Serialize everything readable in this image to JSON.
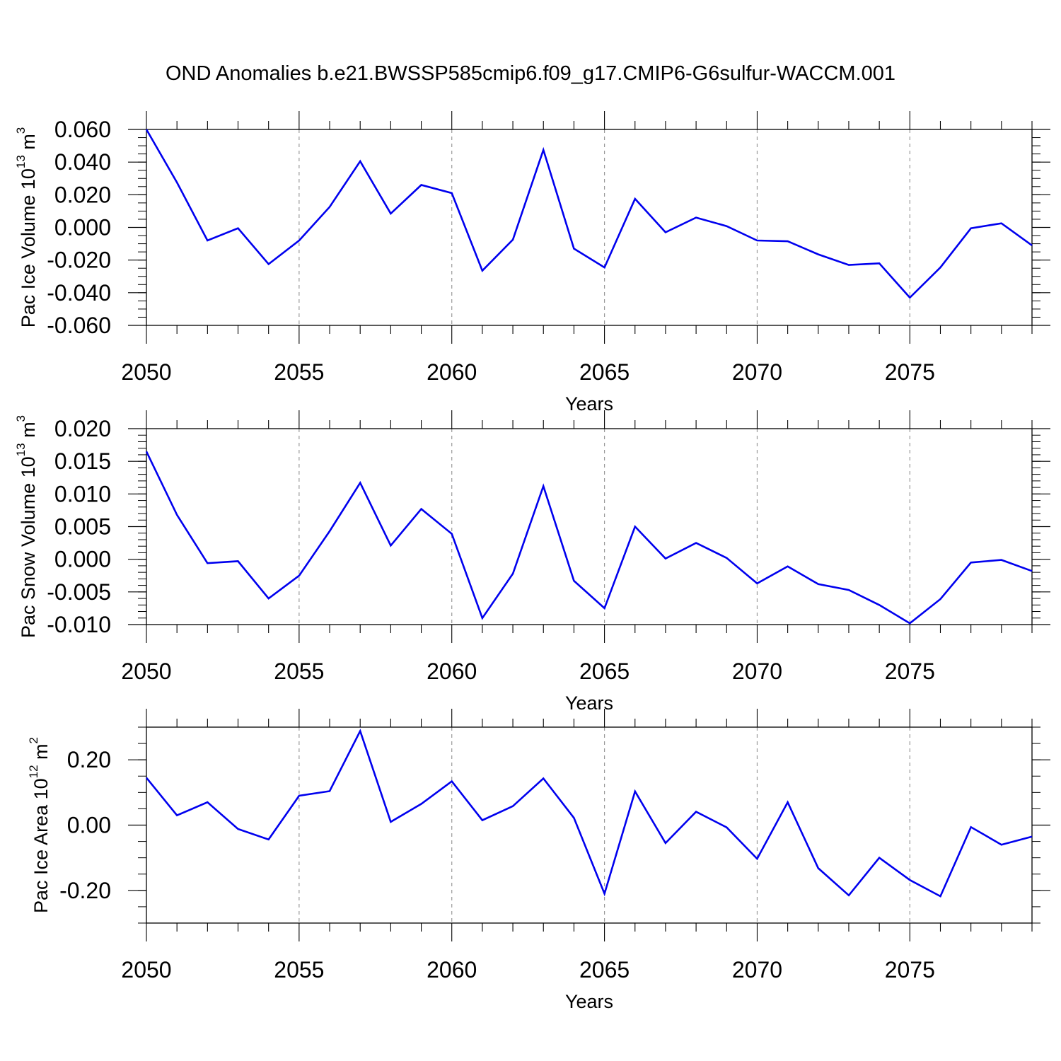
{
  "title": "OND Anomalies b.e21.BWSSP585cmip6.f09_g17.CMIP6-G6sulfur-WACCM.001",
  "chart_data": [
    {
      "type": "line",
      "ylabel_text": "Pac Ice Volume 10",
      "ylabel_exp": "13",
      "ylabel_unit": " m",
      "ylabel_unit_exp": "3",
      "xlabel": "Years",
      "xlim": [
        2050,
        2079
      ],
      "ylim": [
        -0.06,
        0.06
      ],
      "yticks": [
        -0.06,
        -0.04,
        -0.02,
        0.0,
        0.02,
        0.04,
        0.06
      ],
      "ytick_labels": [
        "-0.060",
        "-0.040",
        "-0.020",
        "0.000",
        "0.020",
        "0.040",
        "0.060"
      ],
      "yminor_step": 0.005,
      "xticks": [
        2050,
        2055,
        2060,
        2065,
        2070,
        2075
      ],
      "xtick_labels": [
        "2050",
        "2055",
        "2060",
        "2065",
        "2070",
        "2075"
      ],
      "grid": "vertical dashed at major x ticks",
      "color": "#0000ee",
      "x": [
        2050,
        2051,
        2052,
        2053,
        2054,
        2055,
        2056,
        2057,
        2058,
        2059,
        2060,
        2061,
        2062,
        2063,
        2064,
        2065,
        2066,
        2067,
        2068,
        2069,
        2070,
        2071,
        2072,
        2073,
        2074,
        2075,
        2076,
        2077,
        2078,
        2079
      ],
      "values": [
        0.06,
        0.0275,
        -0.008,
        -0.0005,
        -0.0225,
        -0.008,
        0.0125,
        0.0405,
        0.0085,
        0.026,
        0.021,
        -0.0265,
        -0.0075,
        0.0475,
        -0.013,
        -0.0245,
        0.0175,
        -0.003,
        0.006,
        0.0008,
        -0.008,
        -0.0085,
        -0.0165,
        -0.023,
        -0.022,
        -0.043,
        -0.0245,
        -0.0005,
        0.0025,
        -0.011
      ]
    },
    {
      "type": "line",
      "ylabel_text": "Pac Snow Volume 10",
      "ylabel_exp": "13",
      "ylabel_unit": " m",
      "ylabel_unit_exp": "3",
      "xlabel": "Years",
      "xlim": [
        2050,
        2079
      ],
      "ylim": [
        -0.01,
        0.02
      ],
      "yticks": [
        -0.01,
        -0.005,
        0.0,
        0.005,
        0.01,
        0.015,
        0.02
      ],
      "ytick_labels": [
        "-0.010",
        "-0.005",
        "0.000",
        "0.005",
        "0.010",
        "0.015",
        "0.020"
      ],
      "yminor_step": 0.001,
      "xticks": [
        2050,
        2055,
        2060,
        2065,
        2070,
        2075
      ],
      "xtick_labels": [
        "2050",
        "2055",
        "2060",
        "2065",
        "2070",
        "2075"
      ],
      "grid": "vertical dashed at major x ticks",
      "color": "#0000ee",
      "x": [
        2050,
        2051,
        2052,
        2053,
        2054,
        2055,
        2056,
        2057,
        2058,
        2059,
        2060,
        2061,
        2062,
        2063,
        2064,
        2065,
        2066,
        2067,
        2068,
        2069,
        2070,
        2071,
        2072,
        2073,
        2074,
        2075,
        2076,
        2077,
        2078,
        2079
      ],
      "values": [
        0.0165,
        0.0068,
        -0.0006,
        -0.0003,
        -0.006,
        -0.0025,
        0.0043,
        0.0117,
        0.0021,
        0.0077,
        0.0039,
        -0.009,
        -0.0022,
        0.0112,
        -0.0033,
        -0.0075,
        0.005,
        0.0001,
        0.0025,
        0.0002,
        -0.0037,
        -0.0011,
        -0.0038,
        -0.0047,
        -0.007,
        -0.0098,
        -0.0061,
        -0.0005,
        -0.0001,
        -0.0018
      ]
    },
    {
      "type": "line",
      "ylabel_text": "Pac Ice Area 10",
      "ylabel_exp": "12",
      "ylabel_unit": " m",
      "ylabel_unit_exp": "2",
      "xlabel": "Years",
      "xlim": [
        2050,
        2079
      ],
      "ylim": [
        -0.3,
        0.3
      ],
      "yticks": [
        -0.2,
        0.0,
        0.2
      ],
      "ytick_labels": [
        "-0.20",
        "0.00",
        "0.20"
      ],
      "yminor_step": 0.05,
      "xticks": [
        2050,
        2055,
        2060,
        2065,
        2070,
        2075
      ],
      "xtick_labels": [
        "2050",
        "2055",
        "2060",
        "2065",
        "2070",
        "2075"
      ],
      "grid": "vertical dashed at major x ticks",
      "color": "#0000ee",
      "x": [
        2050,
        2051,
        2052,
        2053,
        2054,
        2055,
        2056,
        2057,
        2058,
        2059,
        2060,
        2061,
        2062,
        2063,
        2064,
        2065,
        2066,
        2067,
        2068,
        2069,
        2070,
        2071,
        2072,
        2073,
        2074,
        2075,
        2076,
        2077,
        2078,
        2079
      ],
      "values": [
        0.145,
        0.03,
        0.07,
        -0.012,
        -0.044,
        0.09,
        0.104,
        0.288,
        0.01,
        0.065,
        0.134,
        0.015,
        0.058,
        0.143,
        0.022,
        -0.21,
        0.103,
        -0.055,
        0.041,
        -0.007,
        -0.103,
        0.07,
        -0.132,
        -0.215,
        -0.1,
        -0.168,
        -0.218,
        -0.006,
        -0.06,
        -0.035
      ]
    }
  ]
}
